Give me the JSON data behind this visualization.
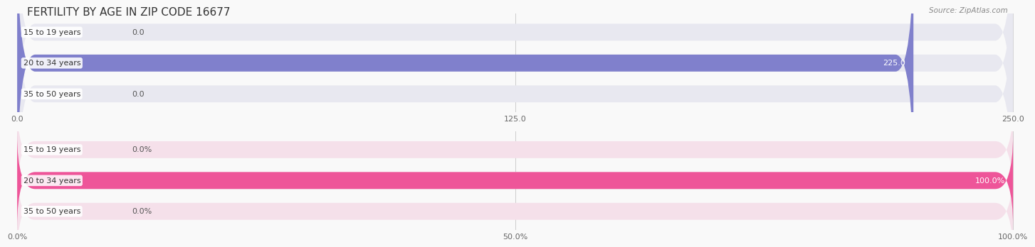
{
  "title": "FERTILITY BY AGE IN ZIP CODE 16677",
  "source": "Source: ZipAtlas.com",
  "top_chart": {
    "categories": [
      "15 to 19 years",
      "20 to 34 years",
      "35 to 50 years"
    ],
    "values": [
      0.0,
      225.0,
      0.0
    ],
    "max_value": 250.0,
    "ticks": [
      0.0,
      125.0,
      250.0
    ],
    "tick_labels": [
      "0.0",
      "125.0",
      "250.0"
    ],
    "bar_color": "#8080cc",
    "bar_bg_color": "#e8e8f0",
    "label_color": "#333333",
    "value_color_inside": "#ffffff",
    "value_color_outside": "#555555"
  },
  "bottom_chart": {
    "categories": [
      "15 to 19 years",
      "20 to 34 years",
      "35 to 50 years"
    ],
    "values": [
      0.0,
      100.0,
      0.0
    ],
    "max_value": 100.0,
    "ticks": [
      0.0,
      50.0,
      100.0
    ],
    "tick_labels": [
      "0.0%",
      "50.0%",
      "100.0%"
    ],
    "bar_color": "#ee5599",
    "bar_bg_color": "#f5e0ea",
    "label_color": "#333333",
    "value_color_inside": "#ffffff",
    "value_color_outside": "#555555"
  },
  "bg_color": "#f9f9f9",
  "title_fontsize": 11,
  "source_fontsize": 7.5,
  "label_fontsize": 8,
  "value_fontsize": 8,
  "tick_fontsize": 8
}
